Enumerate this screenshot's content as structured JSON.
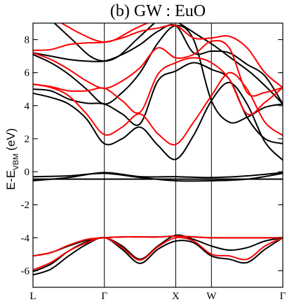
{
  "chart_data": {
    "type": "line",
    "title": "(b) GW : EuO",
    "ylabel": "E-E",
    "ylabel_sub": "VBM",
    "ylabel_unit": "(eV)",
    "ylim": [
      -7,
      9
    ],
    "yticks": [
      -6,
      -4,
      -2,
      0,
      2,
      4,
      6,
      8
    ],
    "ytick_labels": [
      "-6",
      "-4",
      "-2",
      "0",
      "2",
      "4",
      "6",
      "8"
    ],
    "kpoints": [
      {
        "label": "L",
        "x": 0
      },
      {
        "label": "Γ",
        "x": 1
      },
      {
        "label": "X",
        "x": 2
      },
      {
        "label": "W",
        "x": 2.5
      },
      {
        "label": "Γ",
        "x": 3.5
      }
    ],
    "xlim": [
      0,
      3.5
    ],
    "grid": false,
    "colors": {
      "spin_a": "#000000",
      "spin_b": "#ff0000"
    },
    "series": [
      {
        "color": "#000000",
        "points": [
          [
            0,
            -6.25
          ],
          [
            0.25,
            -5.9
          ],
          [
            0.5,
            -5.1
          ],
          [
            0.75,
            -4.4
          ],
          [
            1,
            -4.0
          ],
          [
            1.25,
            -4.7
          ],
          [
            1.5,
            -5.55
          ],
          [
            1.75,
            -4.7
          ],
          [
            2,
            -4.2
          ],
          [
            2.25,
            -4.3
          ],
          [
            2.5,
            -5.1
          ],
          [
            2.75,
            -5.3
          ],
          [
            3.0,
            -5.5
          ],
          [
            3.25,
            -4.7
          ],
          [
            3.5,
            -4.0
          ]
        ]
      },
      {
        "color": "#000000",
        "points": [
          [
            0,
            -6.05
          ],
          [
            0.25,
            -5.6
          ],
          [
            0.5,
            -4.8
          ],
          [
            0.75,
            -4.25
          ],
          [
            1,
            -4.0
          ],
          [
            1.25,
            -4.5
          ],
          [
            1.5,
            -5.3
          ],
          [
            1.75,
            -4.5
          ],
          [
            2,
            -3.85
          ],
          [
            2.25,
            -4.1
          ],
          [
            2.5,
            -4.5
          ],
          [
            2.75,
            -4.75
          ],
          [
            3.0,
            -4.6
          ],
          [
            3.25,
            -4.2
          ],
          [
            3.5,
            -4.0
          ]
        ]
      },
      {
        "color": "#000000",
        "points": [
          [
            0,
            -5.1
          ],
          [
            0.25,
            -4.9
          ],
          [
            0.5,
            -4.5
          ],
          [
            0.75,
            -4.15
          ],
          [
            1,
            -4.0
          ],
          [
            1.25,
            -3.95
          ],
          [
            1.5,
            -3.95
          ],
          [
            1.75,
            -3.95
          ],
          [
            2,
            -3.9
          ],
          [
            2.25,
            -3.95
          ],
          [
            2.5,
            -4.0
          ],
          [
            2.75,
            -4.0
          ],
          [
            3.0,
            -4.0
          ],
          [
            3.25,
            -4.0
          ],
          [
            3.5,
            -4.0
          ]
        ]
      },
      {
        "color": "#ff0000",
        "points": [
          [
            0,
            -5.95
          ],
          [
            0.25,
            -5.5
          ],
          [
            0.5,
            -4.8
          ],
          [
            0.75,
            -4.3
          ],
          [
            1,
            -4.0
          ],
          [
            1.25,
            -4.6
          ],
          [
            1.5,
            -5.35
          ],
          [
            1.75,
            -4.55
          ],
          [
            2,
            -4.0
          ],
          [
            2.25,
            -4.2
          ],
          [
            2.5,
            -5.0
          ],
          [
            2.75,
            -5.1
          ],
          [
            3.0,
            -5.3
          ],
          [
            3.25,
            -4.5
          ],
          [
            3.5,
            -4.0
          ]
        ]
      },
      {
        "color": "#ff0000",
        "points": [
          [
            0,
            -5.1
          ],
          [
            0.25,
            -4.9
          ],
          [
            0.5,
            -4.45
          ],
          [
            0.75,
            -4.1
          ],
          [
            1,
            -4.0
          ],
          [
            1.25,
            -3.95
          ],
          [
            1.5,
            -3.95
          ],
          [
            1.75,
            -3.95
          ],
          [
            2,
            -3.9
          ],
          [
            2.25,
            -3.95
          ],
          [
            2.5,
            -4.0
          ],
          [
            2.75,
            -4.0
          ],
          [
            3.0,
            -4.0
          ],
          [
            3.25,
            -4.0
          ],
          [
            3.5,
            -4.0
          ]
        ]
      },
      {
        "color": "#000000",
        "points": [
          [
            0,
            -0.55
          ],
          [
            0.5,
            -0.35
          ],
          [
            1,
            -0.05
          ],
          [
            1.5,
            -0.3
          ],
          [
            2,
            -0.3
          ],
          [
            2.5,
            -0.35
          ],
          [
            3,
            -0.25
          ],
          [
            3.5,
            -0.05
          ]
        ]
      },
      {
        "color": "#000000",
        "points": [
          [
            0,
            -0.3
          ],
          [
            0.5,
            -0.25
          ],
          [
            1,
            -0.1
          ],
          [
            1.5,
            -0.35
          ],
          [
            2,
            -0.55
          ],
          [
            2.5,
            -0.55
          ],
          [
            3,
            -0.45
          ],
          [
            3.5,
            -0.1
          ]
        ]
      },
      {
        "color": "#000000",
        "points": [
          [
            0,
            -0.45
          ],
          [
            1,
            -0.45
          ],
          [
            2,
            -0.45
          ],
          [
            3.5,
            -0.45
          ]
        ]
      },
      {
        "color": "#000000",
        "points": [
          [
            0,
            4.75
          ],
          [
            0.25,
            4.5
          ],
          [
            0.5,
            4.1
          ],
          [
            0.75,
            3.2
          ],
          [
            1,
            1.7
          ],
          [
            1.25,
            2.0
          ],
          [
            1.5,
            2.7
          ],
          [
            1.75,
            1.6
          ],
          [
            2,
            0.75
          ],
          [
            2.25,
            2.2
          ],
          [
            2.5,
            4.3
          ],
          [
            2.75,
            5.4
          ],
          [
            3.0,
            4.1
          ],
          [
            3.25,
            1.8
          ],
          [
            3.5,
            0.7
          ]
        ]
      },
      {
        "color": "#000000",
        "points": [
          [
            0,
            5.0
          ],
          [
            0.25,
            4.9
          ],
          [
            0.5,
            4.4
          ],
          [
            0.75,
            4.15
          ],
          [
            1,
            4.1
          ],
          [
            1.25,
            3.5
          ],
          [
            1.5,
            2.9
          ],
          [
            1.75,
            5.5
          ],
          [
            2,
            6.1
          ],
          [
            2.25,
            6.6
          ],
          [
            2.5,
            6.2
          ],
          [
            2.75,
            5.6
          ],
          [
            3.0,
            3.3
          ],
          [
            3.25,
            2.0
          ],
          [
            3.5,
            1.7
          ]
        ]
      },
      {
        "color": "#000000",
        "points": [
          [
            0,
            7.1
          ],
          [
            0.25,
            6.6
          ],
          [
            0.5,
            5.9
          ],
          [
            0.75,
            5.0
          ],
          [
            1,
            4.1
          ],
          [
            1.25,
            4.8
          ],
          [
            1.5,
            6.0
          ],
          [
            1.75,
            7.8
          ],
          [
            2,
            8.85
          ],
          [
            2.25,
            8.0
          ],
          [
            2.5,
            4.3
          ],
          [
            2.75,
            3.0
          ],
          [
            3.0,
            3.3
          ],
          [
            3.25,
            3.9
          ],
          [
            3.5,
            4.1
          ]
        ]
      },
      {
        "color": "#000000",
        "points": [
          [
            0,
            7.2
          ],
          [
            0.25,
            7.0
          ],
          [
            0.5,
            6.8
          ],
          [
            0.75,
            6.7
          ],
          [
            1,
            6.7
          ],
          [
            1.25,
            7.1
          ],
          [
            1.5,
            7.7
          ],
          [
            1.75,
            8.5
          ],
          [
            2,
            8.85
          ],
          [
            2.25,
            7.2
          ],
          [
            2.5,
            7.3
          ],
          [
            2.75,
            7.2
          ],
          [
            3.0,
            6.5
          ],
          [
            3.25,
            5.8
          ],
          [
            3.5,
            4.1
          ]
        ]
      },
      {
        "color": "#000000",
        "points": [
          [
            0.3,
            9
          ],
          [
            0.55,
            8.0
          ],
          [
            0.8,
            7.0
          ],
          [
            1,
            6.7
          ],
          [
            1.2,
            7.0
          ],
          [
            1.45,
            8.0
          ],
          [
            1.7,
            9.0
          ]
        ]
      },
      {
        "color": "#000000",
        "points": [
          [
            2.05,
            9
          ],
          [
            2.3,
            8.3
          ],
          [
            2.55,
            7.6
          ],
          [
            2.8,
            6.8
          ],
          [
            3.05,
            6.0
          ],
          [
            3.3,
            5.0
          ],
          [
            3.5,
            4.1
          ]
        ]
      },
      {
        "color": "#ff0000",
        "points": [
          [
            0,
            5.3
          ],
          [
            0.25,
            5.1
          ],
          [
            0.5,
            4.6
          ],
          [
            0.75,
            3.5
          ],
          [
            1,
            2.25
          ],
          [
            1.25,
            2.7
          ],
          [
            1.5,
            3.5
          ],
          [
            1.75,
            2.3
          ],
          [
            2,
            1.65
          ],
          [
            2.25,
            3.0
          ],
          [
            2.5,
            4.6
          ],
          [
            2.75,
            6.0
          ],
          [
            3.0,
            5.0
          ],
          [
            3.25,
            3.0
          ],
          [
            3.5,
            2.2
          ]
        ]
      },
      {
        "color": "#ff0000",
        "points": [
          [
            0,
            5.3
          ],
          [
            0.25,
            5.15
          ],
          [
            0.5,
            4.9
          ],
          [
            0.75,
            4.9
          ],
          [
            1,
            5.05
          ],
          [
            1.25,
            4.3
          ],
          [
            1.5,
            3.6
          ],
          [
            1.75,
            5.9
          ],
          [
            2,
            6.6
          ],
          [
            2.25,
            6.9
          ],
          [
            2.5,
            6.6
          ],
          [
            2.75,
            5.6
          ],
          [
            3.0,
            3.5
          ],
          [
            3.25,
            4.2
          ],
          [
            3.5,
            5.1
          ]
        ]
      },
      {
        "color": "#ff0000",
        "points": [
          [
            0,
            7.2
          ],
          [
            0.25,
            6.8
          ],
          [
            0.5,
            6.2
          ],
          [
            0.75,
            5.5
          ],
          [
            1,
            5.05
          ],
          [
            1.25,
            5.5
          ],
          [
            1.5,
            6.3
          ],
          [
            1.75,
            7.5
          ],
          [
            2,
            6.9
          ],
          [
            2.25,
            7.1
          ],
          [
            2.5,
            7.9
          ],
          [
            2.75,
            7.5
          ],
          [
            3.0,
            4.8
          ],
          [
            3.25,
            4.8
          ],
          [
            3.5,
            5.1
          ]
        ]
      },
      {
        "color": "#ff0000",
        "points": [
          [
            0,
            7.35
          ],
          [
            0.25,
            7.4
          ],
          [
            0.5,
            7.7
          ],
          [
            0.75,
            7.8
          ],
          [
            1,
            7.85
          ],
          [
            1.25,
            8.1
          ],
          [
            1.5,
            8.5
          ],
          [
            1.75,
            8.7
          ],
          [
            2,
            8.85
          ],
          [
            2.25,
            8.1
          ],
          [
            2.5,
            8.1
          ],
          [
            2.75,
            8.2
          ],
          [
            3.0,
            7.5
          ],
          [
            3.25,
            6.0
          ],
          [
            3.5,
            5.1
          ]
        ]
      },
      {
        "color": "#ff0000",
        "points": [
          [
            0.4,
            9
          ],
          [
            0.65,
            8.4
          ],
          [
            0.85,
            8.0
          ],
          [
            1,
            7.85
          ],
          [
            1.15,
            8.0
          ],
          [
            1.4,
            8.6
          ],
          [
            1.6,
            9.0
          ]
        ]
      }
    ]
  }
}
